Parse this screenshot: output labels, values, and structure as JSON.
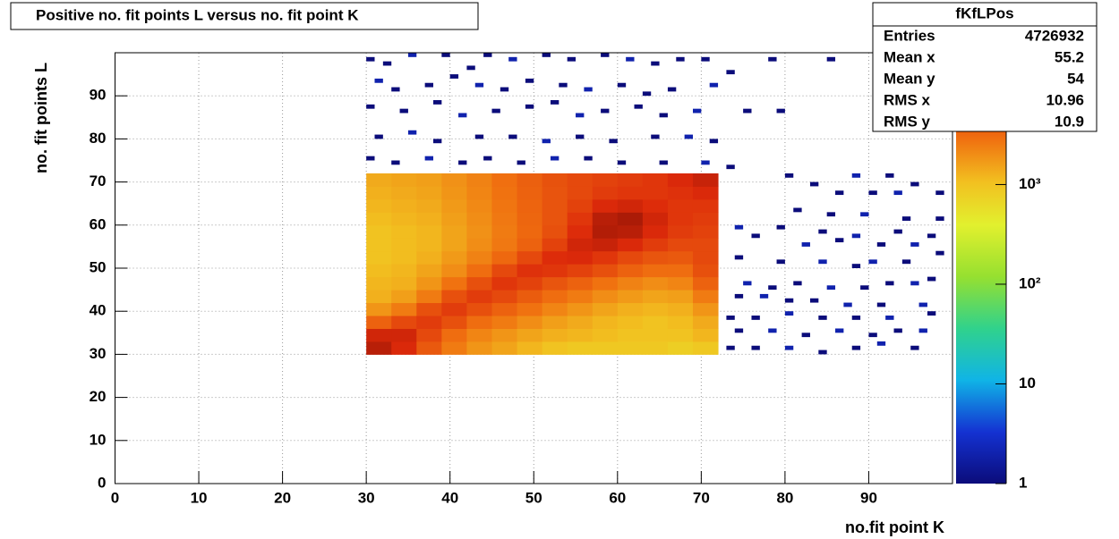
{
  "chart_data": {
    "type": "heatmap",
    "title": "Positive no. fit points L versus no. fit point K",
    "xlabel": "no.fit point K",
    "ylabel": "no. fit points  L",
    "xlim": [
      0,
      100
    ],
    "ylim": [
      0,
      100
    ],
    "xticks": [
      0,
      10,
      20,
      30,
      40,
      50,
      60,
      70,
      80,
      90
    ],
    "yticks": [
      0,
      10,
      20,
      30,
      40,
      50,
      60,
      70,
      80,
      90
    ],
    "grid": true,
    "zlog": true,
    "zlim": [
      1,
      21000
    ],
    "zticks": [
      1,
      10,
      {
        "value": 100,
        "label": "10²"
      },
      {
        "value": 1000,
        "label": "10³"
      }
    ],
    "xbins": [
      30,
      33,
      36,
      39,
      42,
      45,
      48,
      51,
      54,
      57,
      60,
      63,
      66,
      69,
      72
    ],
    "ybins": [
      30,
      33,
      36,
      39,
      42,
      45,
      48,
      51,
      54,
      57,
      60,
      63,
      66,
      69,
      72
    ],
    "z": [
      [
        12000,
        8000,
        4000,
        2500,
        1800,
        1500,
        1200,
        1000,
        900,
        900,
        900,
        900,
        800,
        900
      ],
      [
        9000,
        9000,
        5000,
        3000,
        2200,
        1800,
        1500,
        1300,
        1200,
        1100,
        1000,
        1000,
        1000,
        1200
      ],
      [
        3500,
        5000,
        6000,
        4500,
        3000,
        2500,
        2000,
        1600,
        1400,
        1200,
        1100,
        1000,
        1100,
        1400
      ],
      [
        1800,
        2500,
        4500,
        6000,
        4500,
        3500,
        2800,
        2200,
        1800,
        1500,
        1300,
        1200,
        1300,
        1800
      ],
      [
        1300,
        1600,
        2500,
        4500,
        6000,
        5000,
        3800,
        3000,
        2500,
        2000,
        1700,
        1500,
        1600,
        2500
      ],
      [
        1200,
        1300,
        1800,
        2800,
        4500,
        6500,
        5500,
        4200,
        3500,
        2800,
        2300,
        2000,
        2200,
        3500
      ],
      [
        1100,
        1200,
        1500,
        2000,
        3000,
        5000,
        7000,
        6500,
        5500,
        4500,
        3500,
        3000,
        3000,
        4500
      ],
      [
        1000,
        1100,
        1300,
        1700,
        2300,
        3200,
        5000,
        7500,
        8000,
        6500,
        5000,
        4200,
        4000,
        5000
      ],
      [
        1000,
        1100,
        1200,
        1500,
        2000,
        2600,
        3500,
        5500,
        9000,
        10000,
        8000,
        6000,
        5000,
        5000
      ],
      [
        1000,
        1100,
        1200,
        1500,
        1900,
        2500,
        3200,
        4500,
        7500,
        13000,
        12000,
        8000,
        6000,
        5500
      ],
      [
        1100,
        1200,
        1300,
        1600,
        2000,
        2600,
        3300,
        4300,
        6500,
        12000,
        14000,
        9000,
        6500,
        6000
      ],
      [
        1200,
        1300,
        1400,
        1700,
        2100,
        2700,
        3400,
        4300,
        5500,
        8000,
        9000,
        7500,
        6500,
        6500
      ],
      [
        1300,
        1400,
        1500,
        1800,
        2200,
        2800,
        3500,
        4300,
        5000,
        6000,
        6500,
        6500,
        7000,
        8000
      ],
      [
        1400,
        1500,
        1600,
        1900,
        2300,
        2900,
        3600,
        4400,
        5000,
        5500,
        6000,
        6500,
        8000,
        10000
      ]
    ],
    "sparse": {
      "x": [
        30,
        32,
        35,
        39,
        42,
        44,
        47,
        51,
        54,
        58,
        61,
        64,
        67,
        70,
        31,
        33,
        37,
        40,
        43,
        46,
        49,
        53,
        56,
        60,
        63,
        66,
        71,
        30,
        34,
        38,
        41,
        45,
        49,
        52,
        55,
        58,
        62,
        65,
        69,
        75,
        79,
        31,
        35,
        38,
        43,
        47,
        51,
        55,
        59,
        64,
        68,
        71,
        30,
        33,
        37,
        41,
        44,
        48,
        52,
        56,
        60,
        65,
        70,
        73,
        78,
        85,
        92,
        73,
        80,
        83,
        88,
        92,
        95,
        86,
        90,
        93,
        98,
        81,
        85,
        89,
        94,
        98,
        74,
        79,
        84,
        88,
        93,
        97,
        76,
        82,
        86,
        91,
        95,
        74,
        79,
        84,
        88,
        90,
        94,
        98,
        75,
        78,
        81,
        85,
        89,
        92,
        95,
        97,
        74,
        77,
        80,
        83,
        87,
        91,
        96,
        73,
        76,
        80,
        84,
        88,
        92,
        97,
        74,
        78,
        82,
        86,
        90,
        93,
        96,
        73,
        76,
        80,
        84,
        88,
        91,
        95
      ],
      "y": [
        98,
        97,
        99,
        99,
        96,
        99,
        98,
        99,
        98,
        99,
        98,
        97,
        98,
        98,
        93,
        91,
        92,
        94,
        92,
        91,
        93,
        92,
        91,
        92,
        90,
        91,
        92,
        87,
        86,
        88,
        85,
        86,
        87,
        88,
        85,
        86,
        87,
        85,
        86,
        86,
        86,
        80,
        81,
        79,
        80,
        80,
        79,
        80,
        79,
        80,
        80,
        79,
        75,
        74,
        75,
        74,
        75,
        74,
        75,
        75,
        74,
        74,
        74,
        95,
        98,
        98,
        98,
        73,
        71,
        69,
        71,
        71,
        69,
        67,
        67,
        67,
        67,
        63,
        62,
        62,
        61,
        61,
        59,
        59,
        58,
        57,
        58,
        57,
        57,
        55,
        56,
        55,
        55,
        52,
        51,
        51,
        50,
        51,
        51,
        53,
        46,
        45,
        46,
        45,
        45,
        46,
        46,
        47,
        43,
        43,
        42,
        42,
        41,
        41,
        41,
        38,
        38,
        39,
        38,
        38,
        38,
        39,
        35,
        35,
        34,
        35,
        34,
        35,
        35,
        31,
        31,
        31,
        30,
        31,
        32,
        31
      ],
      "z": [
        1,
        1,
        2,
        1,
        1,
        1,
        2,
        1,
        1,
        1,
        2,
        1,
        1,
        1,
        2,
        1,
        1,
        1,
        2,
        1,
        1,
        1,
        2,
        1,
        1,
        1,
        2,
        1,
        1,
        1,
        2,
        1,
        1,
        1,
        2,
        1,
        1,
        1,
        2,
        1,
        1,
        1,
        2,
        1,
        1,
        1,
        2,
        1,
        1,
        1,
        2,
        1,
        1,
        1,
        2,
        1,
        1,
        1,
        2,
        1,
        1,
        1,
        2,
        1,
        1,
        1,
        1,
        1,
        1,
        1,
        2,
        1,
        1,
        1,
        1,
        2,
        1,
        1,
        1,
        2,
        1,
        1,
        2,
        1,
        1,
        2,
        1,
        1,
        1,
        2,
        1,
        1,
        2,
        1,
        1,
        2,
        1,
        2,
        1,
        1,
        2,
        1,
        1,
        2,
        1,
        1,
        2,
        1,
        1,
        2,
        1,
        1,
        2,
        1,
        2,
        1,
        1,
        2,
        1,
        1,
        2,
        1,
        1,
        2,
        1,
        2,
        1,
        1,
        2,
        1,
        1,
        2,
        1,
        1,
        2,
        1
      ]
    },
    "stats": {
      "title": "fKfLPos",
      "rows": [
        {
          "label": "Entries",
          "value": 4726932
        },
        {
          "label": "Mean x",
          "value": 55.2
        },
        {
          "label": "Mean y",
          "value": 54
        },
        {
          "label": "RMS x",
          "value": 10.96
        },
        {
          "label": "RMS y",
          "value": 10.9
        }
      ]
    }
  }
}
